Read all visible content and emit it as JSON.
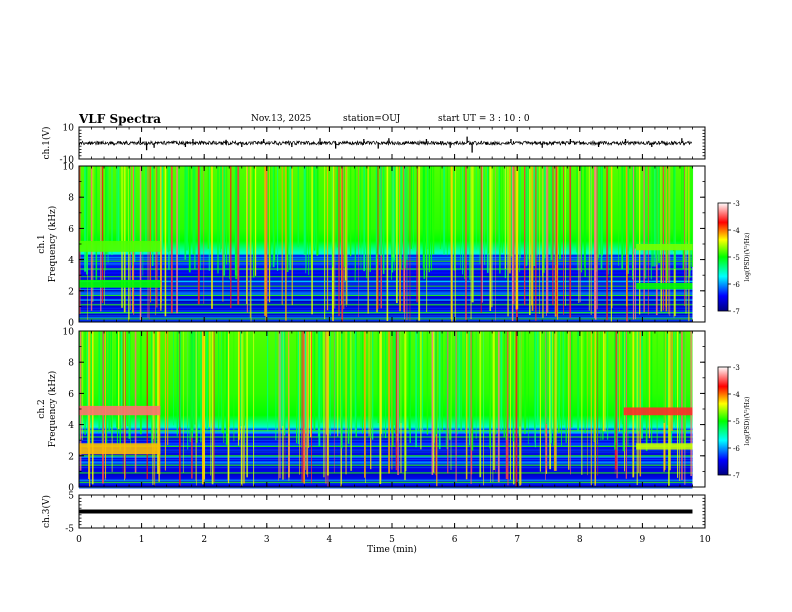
{
  "header": {
    "title": "VLF Spectra",
    "date": "Nov.13, 2025",
    "station": "station=OUJ",
    "start": "start  UT =  3 : 10 : 0"
  },
  "chart_data": [
    {
      "type": "line",
      "name": "ch1-waveform",
      "ylabel": "ch.1(V)",
      "ylim": [
        -10,
        10
      ],
      "yticks": [
        -10,
        10
      ],
      "xlim": [
        0,
        10
      ],
      "data_end_min": 9.8,
      "baseline": 0,
      "noise_amplitude": 1.2,
      "spikes": [
        {
          "t": 0.98,
          "v": 3.5
        },
        {
          "t": 1.08,
          "v": -4.5
        },
        {
          "t": 1.2,
          "v": -3.0
        },
        {
          "t": 1.7,
          "v": -2.5
        },
        {
          "t": 1.82,
          "v": 2.5
        },
        {
          "t": 2.35,
          "v": 2.0
        },
        {
          "t": 2.6,
          "v": -2.5
        },
        {
          "t": 2.95,
          "v": 2.5
        },
        {
          "t": 3.4,
          "v": -2.5
        },
        {
          "t": 3.85,
          "v": 3.0
        },
        {
          "t": 4.1,
          "v": -3.5
        },
        {
          "t": 4.55,
          "v": 2.5
        },
        {
          "t": 4.78,
          "v": -3.5
        },
        {
          "t": 4.95,
          "v": 3.0
        },
        {
          "t": 5.55,
          "v": 2.5
        },
        {
          "t": 5.93,
          "v": -3.0
        },
        {
          "t": 6.2,
          "v": 4.0
        },
        {
          "t": 6.28,
          "v": -6.0
        },
        {
          "t": 6.9,
          "v": 2.5
        },
        {
          "t": 7.4,
          "v": -3.0
        },
        {
          "t": 7.85,
          "v": 2.5
        },
        {
          "t": 8.3,
          "v": -2.5
        },
        {
          "t": 8.73,
          "v": 2.5
        },
        {
          "t": 9.15,
          "v": -2.5
        },
        {
          "t": 9.63,
          "v": 3.0
        }
      ]
    },
    {
      "type": "heatmap",
      "name": "ch1-spectrogram",
      "ylabel": "ch.1\nFrequency (kHz)",
      "ylim": [
        0,
        10
      ],
      "yticks": [
        0,
        2,
        4,
        6,
        8,
        10
      ],
      "xlim": [
        0,
        10
      ],
      "data_end_min": 9.8,
      "colorbar": {
        "label": "log(PSD)(V²/Hz)",
        "range": [
          -7,
          -3
        ],
        "ticks": [
          -3,
          -4,
          -5,
          -6,
          -7
        ]
      },
      "noise_floor_khz": 4.4,
      "lines_khz": [
        0.2,
        0.6,
        1.1,
        1.7,
        2.3,
        2.9,
        3.4,
        3.9
      ],
      "bands": [
        {
          "t0": 0.0,
          "t1": 1.3,
          "f0": 4.5,
          "f1": 5.2,
          "level": -4.8
        },
        {
          "t0": 0.0,
          "t1": 1.3,
          "f0": 2.2,
          "f1": 2.7,
          "level": -5.0
        },
        {
          "t0": 8.9,
          "t1": 9.8,
          "f0": 4.6,
          "f1": 5.0,
          "level": -4.7
        },
        {
          "t0": 8.9,
          "t1": 9.8,
          "f0": 2.1,
          "f1": 2.5,
          "level": -5.0
        }
      ]
    },
    {
      "type": "heatmap",
      "name": "ch2-spectrogram",
      "ylabel": "ch.2\nFrequency (kHz)",
      "ylim": [
        0,
        10
      ],
      "yticks": [
        0,
        2,
        4,
        6,
        8,
        10
      ],
      "xlim": [
        0,
        10
      ],
      "data_end_min": 9.8,
      "colorbar": {
        "label": "log(PSD)(V²/Hz)",
        "range": [
          -7,
          -3
        ],
        "ticks": [
          -3,
          -4,
          -5,
          -6,
          -7
        ]
      },
      "noise_floor_khz": 3.8,
      "lines_khz": [
        0.3,
        0.9,
        1.4,
        2.0,
        2.6,
        3.2,
        3.6
      ],
      "bands": [
        {
          "t0": 0.0,
          "t1": 1.3,
          "f0": 4.6,
          "f1": 5.2,
          "level": -3.4
        },
        {
          "t0": 0.0,
          "t1": 1.3,
          "f0": 2.1,
          "f1": 2.8,
          "level": -4.2
        },
        {
          "t0": 8.7,
          "t1": 9.8,
          "f0": 4.6,
          "f1": 5.1,
          "level": -3.6
        },
        {
          "t0": 8.9,
          "t1": 9.8,
          "f0": 2.4,
          "f1": 2.8,
          "level": -4.5
        }
      ]
    },
    {
      "type": "line",
      "name": "ch3-waveform",
      "ylabel": "ch.3(V)",
      "ylim": [
        -5,
        5
      ],
      "yticks": [
        -5,
        5
      ],
      "xlim": [
        0,
        10
      ],
      "data_end_min": 9.8,
      "baseline": 0,
      "noise_amplitude": 0
    }
  ],
  "xaxis": {
    "label": "Time (min)",
    "ticks": [
      0,
      1,
      2,
      3,
      4,
      5,
      6,
      7,
      8,
      9,
      10
    ],
    "xlim": [
      0,
      10
    ]
  }
}
